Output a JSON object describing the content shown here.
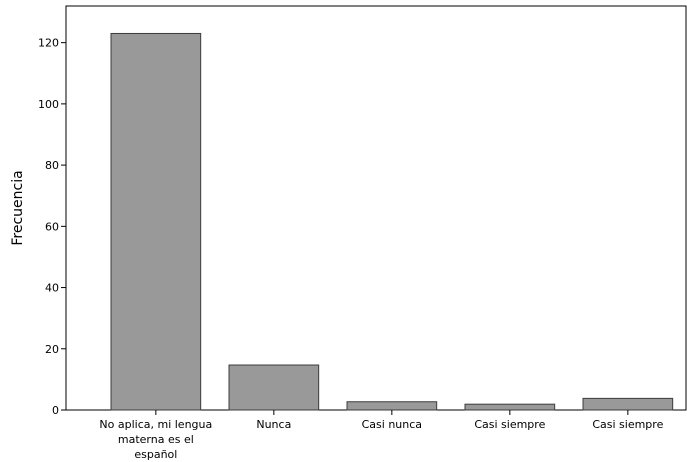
{
  "chart_data": {
    "type": "bar",
    "categories": [
      "No aplica, mi lengua materna es el español",
      "Nunca",
      "Casi nunca",
      "Casi siempre",
      "Casi siempre"
    ],
    "category_label_lines": [
      [
        "No aplica, mi lengua",
        "materna es el",
        "español"
      ],
      [
        "Nunca"
      ],
      [
        "Casi nunca"
      ],
      [
        "Casi siempre"
      ],
      [
        "Casi siempre"
      ]
    ],
    "values": [
      123,
      14.7,
      2.7,
      1.9,
      3.8
    ],
    "xlabel": "",
    "ylabel": "Frecuencia",
    "ylim": [
      0,
      130
    ],
    "yticks": [
      0,
      20,
      40,
      60,
      80,
      100,
      120
    ],
    "grid": false,
    "colors": {
      "bar_fill": "#999999",
      "bar_stroke": "#3c3c3c",
      "axis": "#000000",
      "text": "#000000"
    }
  }
}
